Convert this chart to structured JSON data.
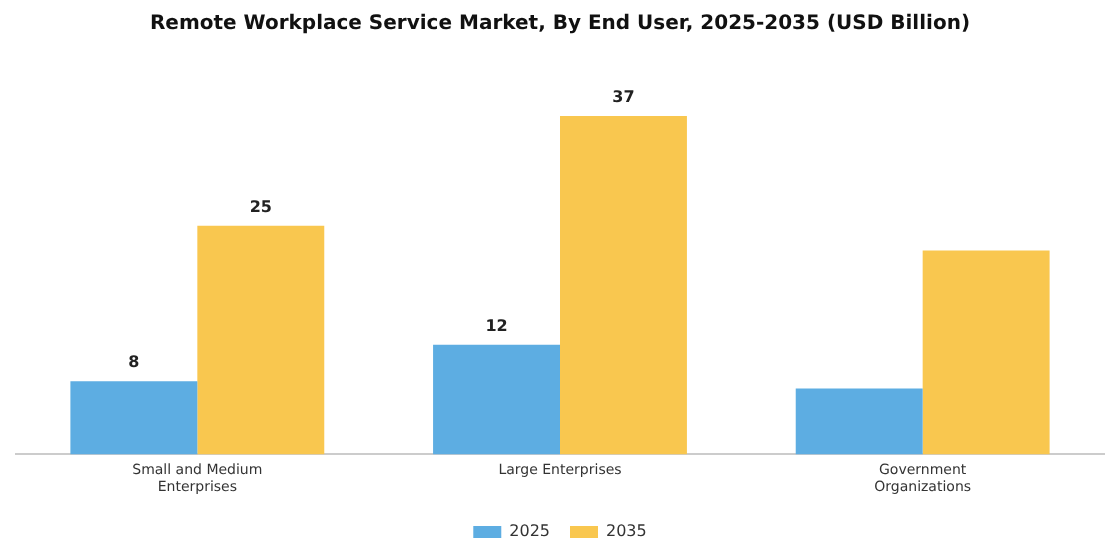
{
  "chart_data": {
    "type": "bar",
    "title": "Remote Workplace Service Market, By End User, 2025-2035 (USD Billion)",
    "categories": [
      "Small and Medium Enterprises",
      "Large Enterprises",
      "Government Organizations"
    ],
    "series": [
      {
        "name": "2025",
        "color": "#5dade2",
        "values": [
          8,
          12,
          7.2
        ],
        "value_labels": [
          "8",
          "12",
          null
        ]
      },
      {
        "name": "2035",
        "color": "#f9c74f",
        "values": [
          25,
          37,
          22.3
        ],
        "value_labels": [
          "25",
          "37",
          null
        ]
      }
    ],
    "legend": "bottom",
    "grid": false
  }
}
